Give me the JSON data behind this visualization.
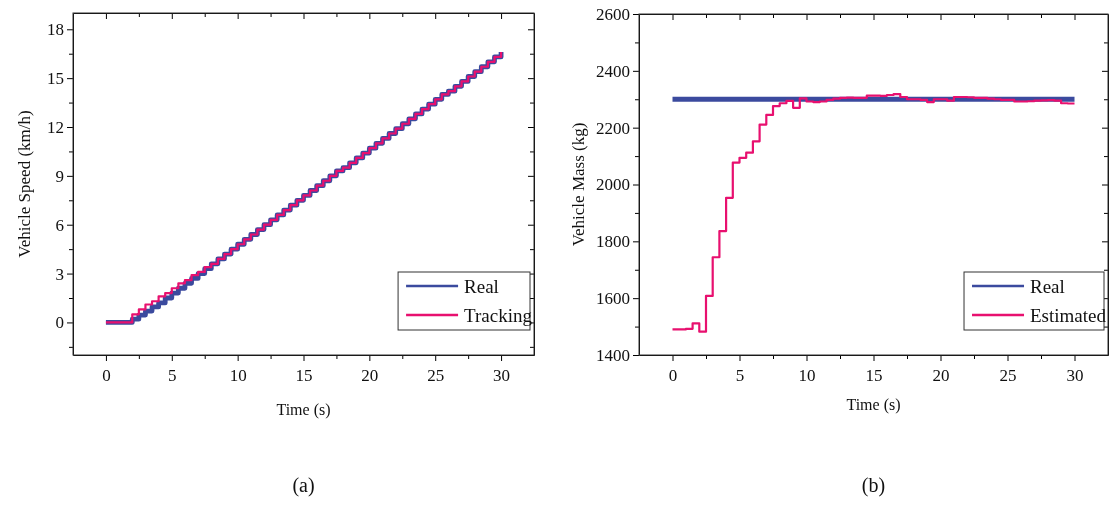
{
  "chart_data": [
    {
      "type": "step",
      "xlabel": "Time (s)",
      "ylabel": "Vehicle Speed (km/h)",
      "annotations": [
        "(a)"
      ],
      "xlim": [
        -2.5,
        32.5
      ],
      "xticks": [
        0,
        {
          "value": 2.5,
          "label": null
        },
        5,
        {
          "value": 7.5,
          "label": null
        },
        10,
        {
          "value": 12.5,
          "label": null
        },
        15,
        {
          "value": 17.5,
          "label": null
        },
        20,
        {
          "value": 22.5,
          "label": null
        },
        25,
        {
          "value": 27.5,
          "label": null
        },
        30
      ],
      "ylim": [
        -2,
        19
      ],
      "yticks": [
        {
          "value": -1.5,
          "label": null
        },
        0,
        {
          "value": 1.5,
          "label": null
        },
        3,
        {
          "value": 4.5,
          "label": null
        },
        6,
        {
          "value": 7.5,
          "label": null
        },
        9,
        {
          "value": 10.5,
          "label": null
        },
        12,
        {
          "value": 13.5,
          "label": null
        },
        15,
        {
          "value": 16.5,
          "label": null
        },
        18
      ],
      "legend": "bottom right",
      "grid": false,
      "x": [
        0,
        0.5,
        1,
        1.5,
        2,
        2.5,
        3,
        3.5,
        4,
        4.5,
        5,
        5.5,
        6,
        6.5,
        7,
        7.5,
        8,
        8.5,
        9,
        9.5,
        10,
        10.5,
        11,
        11.5,
        12,
        12.5,
        13,
        13.5,
        14,
        14.5,
        15,
        15.5,
        16,
        16.5,
        17,
        17.5,
        18,
        18.5,
        19,
        19.5,
        20,
        20.5,
        21,
        21.5,
        22,
        22.5,
        23,
        23.5,
        24,
        24.5,
        25,
        25.5,
        26,
        26.5,
        27,
        27.5,
        28,
        28.5,
        29,
        29.5,
        30
      ],
      "series": [
        {
          "name": "Real",
          "color": "#3b4a9e",
          "values": [
            0,
            0,
            0,
            0,
            0.2,
            0.45,
            0.7,
            0.95,
            1.2,
            1.5,
            1.8,
            2.1,
            2.4,
            2.7,
            3.0,
            3.3,
            3.6,
            3.9,
            4.2,
            4.5,
            4.8,
            5.1,
            5.4,
            5.7,
            6.0,
            6.3,
            6.6,
            6.9,
            7.2,
            7.5,
            7.8,
            8.1,
            8.4,
            8.7,
            9.0,
            9.3,
            9.5,
            9.8,
            10.1,
            10.4,
            10.7,
            11.0,
            11.3,
            11.6,
            11.9,
            12.2,
            12.5,
            12.8,
            13.1,
            13.4,
            13.7,
            14.0,
            14.2,
            14.5,
            14.8,
            15.1,
            15.4,
            15.7,
            16.0,
            16.3,
            16.6
          ]
        },
        {
          "name": "Tracking",
          "color": "#e8106f",
          "values": [
            0,
            0,
            0,
            0,
            0.5,
            0.8,
            1.1,
            1.3,
            1.6,
            1.8,
            2.1,
            2.4,
            2.6,
            2.9,
            3.1,
            3.4,
            3.6,
            3.9,
            4.2,
            4.5,
            4.8,
            5.1,
            5.4,
            5.7,
            6.0,
            6.3,
            6.6,
            6.9,
            7.2,
            7.5,
            7.8,
            8.1,
            8.4,
            8.7,
            9.0,
            9.3,
            9.5,
            9.8,
            10.1,
            10.4,
            10.7,
            11.0,
            11.3,
            11.6,
            11.9,
            12.2,
            12.5,
            12.8,
            13.1,
            13.4,
            13.7,
            14.0,
            14.2,
            14.5,
            14.8,
            15.1,
            15.4,
            15.7,
            16.0,
            16.3,
            16.6
          ]
        }
      ]
    },
    {
      "type": "step",
      "xlabel": "Time (s)",
      "ylabel": "Vehicle Mass (kg)",
      "annotations": [
        "(b)"
      ],
      "xlim": [
        -2.5,
        32.5
      ],
      "xticks": [
        0,
        {
          "value": 2.5,
          "label": null
        },
        5,
        {
          "value": 7.5,
          "label": null
        },
        10,
        {
          "value": 12.5,
          "label": null
        },
        15,
        {
          "value": 17.5,
          "label": null
        },
        20,
        {
          "value": 22.5,
          "label": null
        },
        25,
        {
          "value": 27.5,
          "label": null
        },
        30
      ],
      "ylim": [
        1400,
        2600
      ],
      "yticks": [
        1400,
        {
          "value": 1500,
          "label": null
        },
        1600,
        {
          "value": 1700,
          "label": null
        },
        1800,
        {
          "value": 1900,
          "label": null
        },
        2000,
        {
          "value": 2100,
          "label": null
        },
        2200,
        {
          "value": 2300,
          "label": null
        },
        2400,
        {
          "value": 2500,
          "label": null
        },
        2600
      ],
      "legend": "bottom right",
      "grid": false,
      "series": [
        {
          "name": "Real",
          "color": "#3b4a9e",
          "x": [
            0,
            30
          ],
          "values": [
            2300,
            2300
          ]
        },
        {
          "name": "Estimated",
          "color": "#e8106f",
          "x": [
            0,
            0.5,
            1,
            1.5,
            2,
            2.5,
            3,
            3.5,
            4,
            4.5,
            5,
            5.5,
            6,
            6.5,
            7,
            7.5,
            8,
            8.5,
            9,
            9.5,
            10,
            10.5,
            11,
            11.5,
            12,
            12.5,
            13,
            13.5,
            14,
            14.5,
            15,
            15.5,
            16,
            16.5,
            17,
            17.5,
            18,
            18.5,
            19,
            19.5,
            20,
            20.5,
            21,
            21.5,
            22,
            22.5,
            23,
            23.5,
            24,
            24.5,
            25,
            25.5,
            26,
            26.5,
            27,
            27.5,
            28,
            28.5,
            29,
            29.5,
            30
          ],
          "values": [
            1490,
            1490,
            1492,
            1511,
            1482,
            1608,
            1744,
            1836,
            1953,
            2077,
            2094,
            2112,
            2152,
            2211,
            2245,
            2276,
            2286,
            2294,
            2270,
            2303,
            2292,
            2290,
            2292,
            2298,
            2302,
            2305,
            2306,
            2305,
            2305,
            2313,
            2313,
            2312,
            2315,
            2318,
            2308,
            2300,
            2300,
            2298,
            2290,
            2300,
            2300,
            2295,
            2308,
            2308,
            2307,
            2305,
            2305,
            2302,
            2300,
            2298,
            2298,
            2292,
            2292,
            2293,
            2295,
            2296,
            2297,
            2295,
            2286,
            2285,
            2285
          ]
        }
      ]
    }
  ]
}
